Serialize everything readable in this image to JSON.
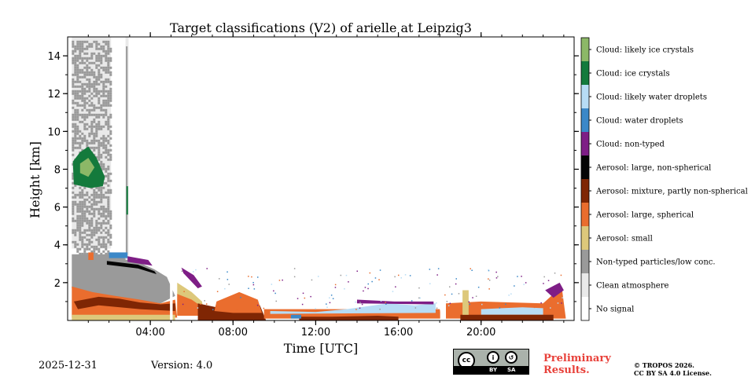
{
  "chart_data": {
    "type": "heatmap",
    "title": "Target classifications (V2) of arielle at Leipzig3",
    "xlabel": "Time [UTC]",
    "ylabel": "Height [km]",
    "xlim_hours": [
      0,
      24.5
    ],
    "ylim_km": [
      0,
      15
    ],
    "x_ticks": [
      {
        "value": 4,
        "label": "04:00"
      },
      {
        "value": 8,
        "label": "08:00"
      },
      {
        "value": 12,
        "label": "12:00"
      },
      {
        "value": 16,
        "label": "16:00"
      },
      {
        "value": 20,
        "label": "20:00"
      }
    ],
    "y_ticks": [
      {
        "value": 2,
        "label": "2"
      },
      {
        "value": 4,
        "label": "4"
      },
      {
        "value": 6,
        "label": "6"
      },
      {
        "value": 8,
        "label": "8"
      },
      {
        "value": 10,
        "label": "10"
      },
      {
        "value": 12,
        "label": "12"
      },
      {
        "value": 14,
        "label": "14"
      }
    ],
    "classes": [
      {
        "label": "Cloud: likely ice crystals",
        "color": "#8cb867"
      },
      {
        "label": "Cloud: ice crystals",
        "color": "#147a3c"
      },
      {
        "label": "Cloud: likely water droplets",
        "color": "#b7dcf5"
      },
      {
        "label": "Cloud: water droplets",
        "color": "#3b88c8"
      },
      {
        "label": "Cloud: non-typed",
        "color": "#7e1e86"
      },
      {
        "label": "Aerosol: large, non-spherical",
        "color": "#050505"
      },
      {
        "label": "Aerosol: mixture, partly non-spherical",
        "color": "#7f2604"
      },
      {
        "label": "Aerosol: large, spherical",
        "color": "#ea6d2e"
      },
      {
        "label": "Aerosol: small",
        "color": "#ddc87b"
      },
      {
        "label": "Non-typed particles/low conc.",
        "color": "#9a9a9a"
      },
      {
        "label": "Clean atmosphere",
        "color": "#e9e9e9"
      },
      {
        "label": "No signal",
        "color": "#ffffff"
      }
    ],
    "regions": [
      {
        "cls": "Clean atmosphere",
        "pts": [
          [
            0.2,
            15
          ],
          [
            2.1,
            15
          ],
          [
            2.1,
            3.8
          ],
          [
            0.2,
            3.8
          ]
        ]
      },
      {
        "cls": "Non-typed particles/low conc.",
        "pts": [
          [
            0.2,
            14.8
          ],
          [
            2.1,
            14.8
          ],
          [
            2.1,
            3.5
          ],
          [
            0.2,
            3.5
          ]
        ],
        "texture": true
      },
      {
        "cls": "Non-typed particles/low conc.",
        "pts": [
          [
            0.2,
            3.5
          ],
          [
            2.1,
            3.5
          ],
          [
            3.4,
            3.1
          ],
          [
            4.2,
            2.7
          ],
          [
            4.8,
            2.3
          ],
          [
            5.2,
            1.3
          ],
          [
            4.5,
            0.9
          ],
          [
            3.0,
            1.1
          ],
          [
            0.2,
            1.7
          ]
        ]
      },
      {
        "cls": "Clean atmosphere",
        "pts": [
          [
            2.8,
            15
          ],
          [
            2.95,
            15
          ],
          [
            2.95,
            3.2
          ],
          [
            2.8,
            3.2
          ]
        ]
      },
      {
        "cls": "Non-typed particles/low conc.",
        "pts": [
          [
            2.82,
            14.5
          ],
          [
            2.9,
            14.5
          ],
          [
            2.9,
            3.5
          ],
          [
            2.82,
            3.5
          ]
        ]
      },
      {
        "cls": "Aerosol: large, spherical",
        "pts": [
          [
            0.2,
            1.8
          ],
          [
            1.2,
            1.5
          ],
          [
            2.3,
            1.3
          ],
          [
            3.5,
            1.1
          ],
          [
            4.5,
            0.9
          ],
          [
            5.2,
            1.1
          ],
          [
            5.3,
            0.15
          ],
          [
            0.2,
            0.15
          ]
        ]
      },
      {
        "cls": "Aerosol: mixture, partly non-spherical",
        "pts": [
          [
            0.3,
            1.0
          ],
          [
            1.5,
            1.25
          ],
          [
            2.5,
            1.15
          ],
          [
            3.5,
            0.95
          ],
          [
            4.5,
            0.85
          ],
          [
            5.2,
            0.9
          ],
          [
            5.2,
            0.5
          ],
          [
            3.5,
            0.6
          ],
          [
            1.5,
            0.8
          ],
          [
            0.5,
            0.6
          ]
        ]
      },
      {
        "cls": "Aerosol: small",
        "pts": [
          [
            0.2,
            0.3
          ],
          [
            5.2,
            0.3
          ],
          [
            5.2,
            0.0
          ],
          [
            0.2,
            0.0
          ]
        ]
      },
      {
        "cls": "Cloud: water droplets",
        "pts": [
          [
            2.0,
            3.6
          ],
          [
            2.9,
            3.6
          ],
          [
            2.9,
            3.3
          ],
          [
            2.0,
            3.3
          ]
        ]
      },
      {
        "cls": "Cloud: non-typed",
        "pts": [
          [
            2.9,
            3.4
          ],
          [
            3.9,
            3.2
          ],
          [
            4.1,
            2.9
          ],
          [
            2.9,
            3.1
          ]
        ]
      },
      {
        "cls": "Aerosol: large, non-spherical",
        "pts": [
          [
            1.9,
            3.15
          ],
          [
            3.4,
            2.95
          ],
          [
            4.2,
            2.6
          ],
          [
            4.3,
            2.45
          ],
          [
            3.4,
            2.75
          ],
          [
            1.9,
            2.95
          ]
        ]
      },
      {
        "cls": "Cloud: ice crystals",
        "pts": [
          [
            0.25,
            8.4
          ],
          [
            0.6,
            8.9
          ],
          [
            1.0,
            9.2
          ],
          [
            1.4,
            8.6
          ],
          [
            1.8,
            7.6
          ],
          [
            1.7,
            7.1
          ],
          [
            1.1,
            7.0
          ],
          [
            0.3,
            7.2
          ]
        ]
      },
      {
        "cls": "Cloud: likely ice crystals",
        "pts": [
          [
            0.6,
            8.3
          ],
          [
            1.0,
            8.6
          ],
          [
            1.3,
            8.1
          ],
          [
            1.0,
            7.6
          ],
          [
            0.6,
            7.8
          ]
        ]
      },
      {
        "cls": "Cloud: ice crystals",
        "pts": [
          [
            2.84,
            7.1
          ],
          [
            2.92,
            7.1
          ],
          [
            2.92,
            5.6
          ],
          [
            2.84,
            5.6
          ]
        ]
      },
      {
        "cls": "Aerosol: large, spherical",
        "pts": [
          [
            1.0,
            3.6
          ],
          [
            1.25,
            3.6
          ],
          [
            1.25,
            3.2
          ],
          [
            1.0,
            3.2
          ]
        ]
      },
      {
        "cls": "Aerosol: small",
        "pts": [
          [
            5.3,
            2.0
          ],
          [
            6.0,
            1.5
          ],
          [
            6.5,
            1.0
          ],
          [
            6.6,
            0.3
          ],
          [
            5.3,
            0.3
          ]
        ]
      },
      {
        "cls": "Aerosol: large, spherical",
        "pts": [
          [
            5.3,
            1.4
          ],
          [
            6.0,
            1.1
          ],
          [
            6.4,
            0.8
          ],
          [
            6.5,
            0.25
          ],
          [
            5.3,
            0.25
          ]
        ]
      },
      {
        "cls": "Aerosol: mixture, partly non-spherical",
        "pts": [
          [
            6.3,
            0.9
          ],
          [
            7.2,
            0.7
          ],
          [
            8.2,
            1.0
          ],
          [
            9.3,
            0.8
          ],
          [
            9.6,
            0.0
          ],
          [
            6.3,
            0.0
          ]
        ]
      },
      {
        "cls": "Aerosol: large, spherical",
        "pts": [
          [
            7.2,
            1.0
          ],
          [
            8.3,
            1.5
          ],
          [
            9.2,
            1.1
          ],
          [
            9.4,
            0.4
          ],
          [
            8.0,
            0.4
          ],
          [
            7.1,
            0.5
          ]
        ]
      },
      {
        "cls": "Cloud: non-typed",
        "pts": [
          [
            5.5,
            2.8
          ],
          [
            6.1,
            2.4
          ],
          [
            6.5,
            1.8
          ],
          [
            6.3,
            1.7
          ],
          [
            5.6,
            2.5
          ]
        ]
      },
      {
        "cls": "Aerosol: large, spherical",
        "pts": [
          [
            9.5,
            0.6
          ],
          [
            12.5,
            0.6
          ],
          [
            18.0,
            0.6
          ],
          [
            18.1,
            0.1
          ],
          [
            9.5,
            0.1
          ]
        ]
      },
      {
        "cls": "Cloud: likely water droplets",
        "pts": [
          [
            9.8,
            0.5
          ],
          [
            12.0,
            0.45
          ],
          [
            13.5,
            0.6
          ],
          [
            15.5,
            0.9
          ],
          [
            16.8,
            0.8
          ],
          [
            17.8,
            0.9
          ],
          [
            17.8,
            0.4
          ],
          [
            9.8,
            0.35
          ]
        ]
      },
      {
        "cls": "Cloud: non-typed",
        "pts": [
          [
            14.0,
            1.1
          ],
          [
            15.8,
            1.0
          ],
          [
            17.7,
            1.0
          ],
          [
            17.7,
            0.85
          ],
          [
            14.0,
            0.9
          ]
        ]
      },
      {
        "cls": "Aerosol: mixture, partly non-spherical",
        "pts": [
          [
            11.2,
            0.2
          ],
          [
            12.8,
            0.2
          ],
          [
            15.0,
            0.25
          ],
          [
            16.0,
            0.2
          ],
          [
            16.0,
            0.0
          ],
          [
            11.2,
            0.0
          ]
        ]
      },
      {
        "cls": "Cloud: water droplets",
        "pts": [
          [
            10.8,
            0.3
          ],
          [
            11.3,
            0.3
          ],
          [
            11.3,
            0.1
          ],
          [
            10.8,
            0.1
          ]
        ]
      },
      {
        "cls": "Aerosol: large, spherical",
        "pts": [
          [
            18.3,
            0.9
          ],
          [
            20.0,
            1.0
          ],
          [
            23.0,
            0.9
          ],
          [
            23.9,
            1.8
          ],
          [
            24.1,
            0.1
          ],
          [
            18.3,
            0.1
          ]
        ]
      },
      {
        "cls": "Cloud: likely water droplets",
        "pts": [
          [
            20.0,
            0.6
          ],
          [
            22.0,
            0.7
          ],
          [
            23.0,
            0.65
          ],
          [
            23.0,
            0.3
          ],
          [
            20.0,
            0.3
          ]
        ]
      },
      {
        "cls": "Aerosol: mixture, partly non-spherical",
        "pts": [
          [
            19.0,
            0.3
          ],
          [
            23.5,
            0.3
          ],
          [
            23.5,
            0.0
          ],
          [
            19.0,
            0.0
          ]
        ]
      },
      {
        "cls": "Cloud: non-typed",
        "pts": [
          [
            23.1,
            1.6
          ],
          [
            23.8,
            2.0
          ],
          [
            24.0,
            1.6
          ],
          [
            23.5,
            1.2
          ]
        ]
      },
      {
        "cls": "Aerosol: small",
        "pts": [
          [
            19.1,
            1.6
          ],
          [
            19.4,
            1.6
          ],
          [
            19.4,
            0.3
          ],
          [
            19.1,
            0.3
          ]
        ]
      }
    ],
    "gaps": [
      {
        "from": 4.95,
        "to": 5.08
      },
      {
        "from": 18.02,
        "to": 18.12
      }
    ]
  },
  "footer": {
    "date": "2025-12-31",
    "version": "Version: 4.0",
    "preliminary_line1": "Preliminary",
    "preliminary_line2": "Results.",
    "copyright_line1": "© TROPOS 2026.",
    "copyright_line2": "CC BY SA 4.0 License.",
    "cc_badge": "cc",
    "cc_by": "BY",
    "cc_sa": "SA"
  }
}
